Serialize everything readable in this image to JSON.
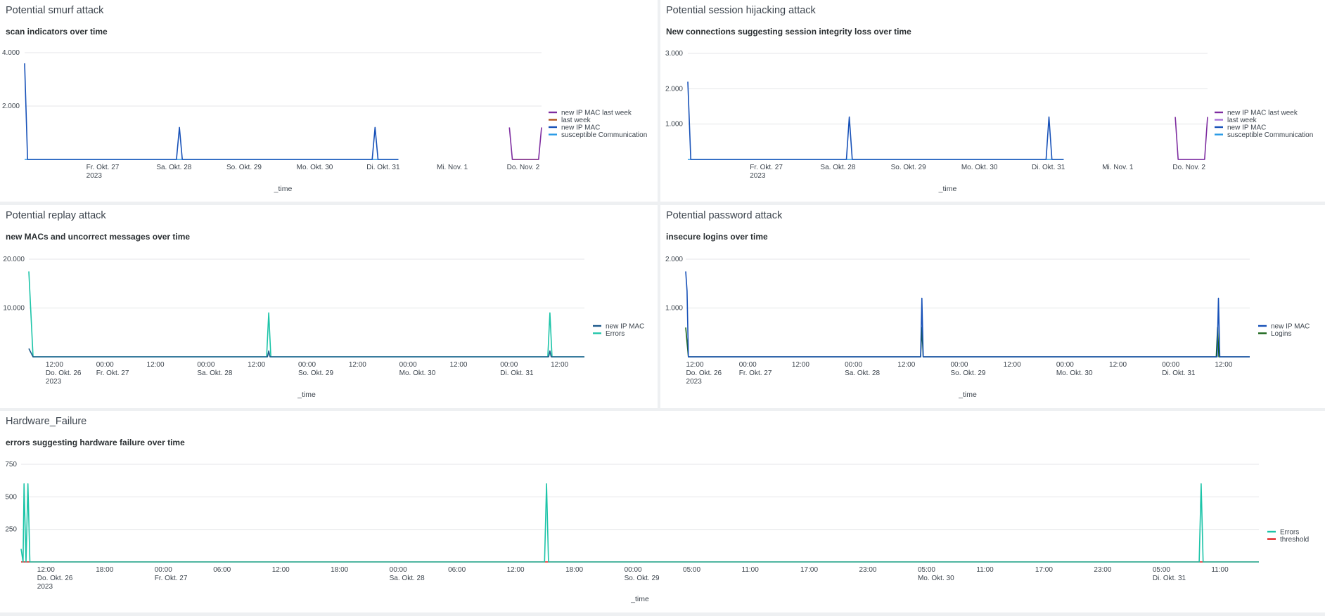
{
  "chart_data": [
    {
      "type": "line",
      "title": "Potential smurf attack",
      "subtitle": "scan indicators over time",
      "xlabel": "_time",
      "ylabel": "",
      "ylim": [
        0,
        4000
      ],
      "yticks": [
        {
          "v": 2000,
          "label": "2.000"
        },
        {
          "v": 4000,
          "label": "4.000"
        }
      ],
      "xlim": [
        0,
        177
      ],
      "xticks": [
        {
          "t": 24,
          "lines": [
            "Fr. Okt. 27",
            "2023"
          ]
        },
        {
          "t": 48,
          "lines": [
            "Sa. Okt. 28"
          ]
        },
        {
          "t": 72,
          "lines": [
            "So. Okt. 29"
          ]
        },
        {
          "t": 96,
          "lines": [
            "Mo. Okt. 30"
          ]
        },
        {
          "t": 120,
          "lines": [
            "Di. Okt. 31"
          ]
        },
        {
          "t": 144,
          "lines": [
            "Mi. Nov. 1"
          ]
        },
        {
          "t": 168,
          "lines": [
            "Do. Nov. 2"
          ]
        }
      ],
      "grid": true,
      "legend_position": "right",
      "series": [
        {
          "name": "new IP MAC last week",
          "color": "#7e2da0",
          "points": [
            [
              166,
              1200
            ],
            [
              167,
              0
            ],
            [
              176,
              0
            ],
            [
              177,
              1200
            ]
          ]
        },
        {
          "name": "last week",
          "color": "#b0521c",
          "points": [
            [
              167,
              0
            ],
            [
              176,
              0
            ]
          ]
        },
        {
          "name": "new IP MAC",
          "color": "#1751b8",
          "points": [
            [
              0,
              3600
            ],
            [
              1,
              0
            ],
            [
              52,
              0
            ],
            [
              53,
              1200
            ],
            [
              54,
              0
            ],
            [
              119,
              0
            ],
            [
              120,
              1200
            ],
            [
              121,
              0
            ],
            [
              128,
              0
            ]
          ]
        },
        {
          "name": "susceptible Communication",
          "color": "#2b9ce6",
          "points": [
            [
              0,
              0
            ],
            [
              128,
              0
            ]
          ]
        }
      ]
    },
    {
      "type": "line",
      "title": "Potential session hijacking attack",
      "subtitle": "New connections suggesting session integrity loss over time",
      "xlabel": "_time",
      "ylabel": "",
      "ylim": [
        0,
        3000
      ],
      "yticks": [
        {
          "v": 1000,
          "label": "1.000"
        },
        {
          "v": 2000,
          "label": "2.000"
        },
        {
          "v": 3000,
          "label": "3.000"
        }
      ],
      "xlim": [
        0,
        177
      ],
      "xticks": [
        {
          "t": 24,
          "lines": [
            "Fr. Okt. 27",
            "2023"
          ]
        },
        {
          "t": 48,
          "lines": [
            "Sa. Okt. 28"
          ]
        },
        {
          "t": 72,
          "lines": [
            "So. Okt. 29"
          ]
        },
        {
          "t": 96,
          "lines": [
            "Mo. Okt. 30"
          ]
        },
        {
          "t": 120,
          "lines": [
            "Di. Okt. 31"
          ]
        },
        {
          "t": 144,
          "lines": [
            "Mi. Nov. 1"
          ]
        },
        {
          "t": 168,
          "lines": [
            "Do. Nov. 2"
          ]
        }
      ],
      "grid": true,
      "legend_position": "right",
      "series": [
        {
          "name": "new IP MAC last week",
          "color": "#7e2da0",
          "points": [
            [
              166,
              1200
            ],
            [
              167,
              0
            ],
            [
              176,
              0
            ],
            [
              177,
              1200
            ]
          ]
        },
        {
          "name": "last week",
          "color": "#a873d8",
          "points": [
            [
              167,
              0
            ],
            [
              176,
              0
            ]
          ]
        },
        {
          "name": "new IP MAC",
          "color": "#1751b8",
          "points": [
            [
              0,
              2200
            ],
            [
              1,
              0
            ],
            [
              54,
              0
            ],
            [
              55,
              1200
            ],
            [
              56,
              0
            ],
            [
              122,
              0
            ],
            [
              123,
              1200
            ],
            [
              124,
              0
            ],
            [
              128,
              0
            ]
          ]
        },
        {
          "name": "susceptible Communication",
          "color": "#2b9ce6",
          "points": [
            [
              0,
              0
            ],
            [
              128,
              0
            ]
          ]
        }
      ]
    },
    {
      "type": "line",
      "title": "Potential replay attack",
      "subtitle": "new MACs and uncorrect messages over time",
      "xlabel": "_time",
      "ylabel": "",
      "ylim": [
        0,
        20000
      ],
      "yticks": [
        {
          "v": 10000,
          "label": "10.000"
        },
        {
          "v": 20000,
          "label": "20.000"
        }
      ],
      "xlim": [
        6,
        138
      ],
      "xticks": [
        {
          "t": 12,
          "lines": [
            "12:00",
            "Do. Okt. 26",
            "2023"
          ]
        },
        {
          "t": 24,
          "lines": [
            "00:00",
            "Fr. Okt. 27"
          ]
        },
        {
          "t": 36,
          "lines": [
            "12:00"
          ]
        },
        {
          "t": 48,
          "lines": [
            "00:00",
            "Sa. Okt. 28"
          ]
        },
        {
          "t": 60,
          "lines": [
            "12:00"
          ]
        },
        {
          "t": 72,
          "lines": [
            "00:00",
            "So. Okt. 29"
          ]
        },
        {
          "t": 84,
          "lines": [
            "12:00"
          ]
        },
        {
          "t": 96,
          "lines": [
            "00:00",
            "Mo. Okt. 30"
          ]
        },
        {
          "t": 108,
          "lines": [
            "12:00"
          ]
        },
        {
          "t": 120,
          "lines": [
            "00:00",
            "Di. Okt. 31"
          ]
        },
        {
          "t": 132,
          "lines": [
            "12:00"
          ]
        }
      ],
      "grid": true,
      "legend_position": "right",
      "series": [
        {
          "name": "new IP MAC",
          "color": "#1e5a8c",
          "points": [
            [
              6,
              1700
            ],
            [
              7,
              0
            ],
            [
              62.7,
              0
            ],
            [
              63,
              1200
            ],
            [
              63.3,
              0
            ],
            [
              129.5,
              0
            ],
            [
              129.8,
              1200
            ],
            [
              130.1,
              0
            ],
            [
              138,
              0
            ]
          ]
        },
        {
          "name": "Errors",
          "color": "#1cc4a8",
          "points": [
            [
              6,
              17500
            ],
            [
              7,
              0
            ],
            [
              62.5,
              0
            ],
            [
              63,
              9000
            ],
            [
              63.5,
              0
            ],
            [
              129.3,
              0
            ],
            [
              129.8,
              9000
            ],
            [
              130.3,
              0
            ],
            [
              138,
              0
            ]
          ]
        }
      ]
    },
    {
      "type": "line",
      "title": "Potential password attack",
      "subtitle": "insecure logins over time",
      "xlabel": "_time",
      "ylabel": "",
      "ylim": [
        0,
        2000
      ],
      "yticks": [
        {
          "v": 1000,
          "label": "1.000"
        },
        {
          "v": 2000,
          "label": "2.000"
        }
      ],
      "xlim": [
        10,
        138
      ],
      "xticks": [
        {
          "t": 12,
          "lines": [
            "12:00",
            "Do. Okt. 26",
            "2023"
          ]
        },
        {
          "t": 24,
          "lines": [
            "00:00",
            "Fr. Okt. 27"
          ]
        },
        {
          "t": 36,
          "lines": [
            "12:00"
          ]
        },
        {
          "t": 48,
          "lines": [
            "00:00",
            "Sa. Okt. 28"
          ]
        },
        {
          "t": 60,
          "lines": [
            "12:00"
          ]
        },
        {
          "t": 72,
          "lines": [
            "00:00",
            "So. Okt. 29"
          ]
        },
        {
          "t": 84,
          "lines": [
            "12:00"
          ]
        },
        {
          "t": 96,
          "lines": [
            "00:00",
            "Mo. Okt. 30"
          ]
        },
        {
          "t": 108,
          "lines": [
            "12:00"
          ]
        },
        {
          "t": 120,
          "lines": [
            "00:00",
            "Di. Okt. 31"
          ]
        },
        {
          "t": 132,
          "lines": [
            "12:00"
          ]
        }
      ],
      "grid": true,
      "legend_position": "right",
      "series": [
        {
          "name": "new IP MAC",
          "color": "#1751b8",
          "points": [
            [
              10,
              1750
            ],
            [
              10.3,
              1350
            ],
            [
              10.6,
              0
            ],
            [
              63.3,
              0
            ],
            [
              63.6,
              1200
            ],
            [
              63.9,
              0
            ],
            [
              130.6,
              0
            ],
            [
              130.9,
              1200
            ],
            [
              131.2,
              0
            ],
            [
              138,
              0
            ]
          ]
        },
        {
          "name": "Logins",
          "color": "#166316",
          "points": [
            [
              10,
              600
            ],
            [
              10.6,
              0
            ],
            [
              63.3,
              0
            ],
            [
              63.6,
              600
            ],
            [
              63.9,
              0
            ],
            [
              130.4,
              0
            ],
            [
              130.7,
              600
            ],
            [
              131,
              0
            ],
            [
              138,
              0
            ]
          ]
        }
      ]
    },
    {
      "type": "line",
      "title": "Hardware_Failure",
      "subtitle": "errors suggesting hardware failure over time",
      "xlabel": "_time",
      "ylabel": "",
      "ylim": [
        0,
        750
      ],
      "yticks": [
        {
          "v": 250,
          "label": "250"
        },
        {
          "v": 500,
          "label": "500"
        },
        {
          "v": 750,
          "label": "750"
        }
      ],
      "xlim": [
        9.5,
        136
      ],
      "xticks": [
        {
          "t": 12,
          "lines": [
            "12:00",
            "Do. Okt. 26",
            "2023"
          ]
        },
        {
          "t": 18,
          "lines": [
            "18:00"
          ]
        },
        {
          "t": 24,
          "lines": [
            "00:00",
            "Fr. Okt. 27"
          ]
        },
        {
          "t": 30,
          "lines": [
            "06:00"
          ]
        },
        {
          "t": 36,
          "lines": [
            "12:00"
          ]
        },
        {
          "t": 42,
          "lines": [
            "18:00"
          ]
        },
        {
          "t": 48,
          "lines": [
            "00:00",
            "Sa. Okt. 28"
          ]
        },
        {
          "t": 54,
          "lines": [
            "06:00"
          ]
        },
        {
          "t": 60,
          "lines": [
            "12:00"
          ]
        },
        {
          "t": 66,
          "lines": [
            "18:00"
          ]
        },
        {
          "t": 72,
          "lines": [
            "00:00",
            "So. Okt. 29"
          ]
        },
        {
          "t": 78,
          "lines": [
            "05:00"
          ]
        },
        {
          "t": 84,
          "lines": [
            "11:00"
          ]
        },
        {
          "t": 90,
          "lines": [
            "17:00"
          ]
        },
        {
          "t": 96,
          "lines": [
            "23:00"
          ]
        },
        {
          "t": 102,
          "lines": [
            "05:00",
            "Mo. Okt. 30"
          ]
        },
        {
          "t": 108,
          "lines": [
            "11:00"
          ]
        },
        {
          "t": 114,
          "lines": [
            "17:00"
          ]
        },
        {
          "t": 120,
          "lines": [
            "23:00"
          ]
        },
        {
          "t": 126,
          "lines": [
            "05:00",
            "Di. Okt. 31"
          ]
        },
        {
          "t": 132,
          "lines": [
            "11:00"
          ]
        }
      ],
      "grid": true,
      "legend_position": "right",
      "series": [
        {
          "name": "Errors",
          "color": "#1cc4a8",
          "points": [
            [
              9.5,
              100
            ],
            [
              9.7,
              0
            ],
            [
              9.8,
              600
            ],
            [
              10,
              0
            ],
            [
              10.2,
              600
            ],
            [
              10.4,
              0
            ],
            [
              63.0,
              0
            ],
            [
              63.2,
              600
            ],
            [
              63.4,
              0
            ],
            [
              129.9,
              0
            ],
            [
              130.1,
              600
            ],
            [
              130.3,
              0
            ],
            [
              136,
              0
            ]
          ]
        },
        {
          "name": "threshold",
          "color": "#dd1c1c",
          "points": [
            [
              9.5,
              0
            ],
            [
              136,
              0
            ]
          ]
        }
      ]
    }
  ]
}
